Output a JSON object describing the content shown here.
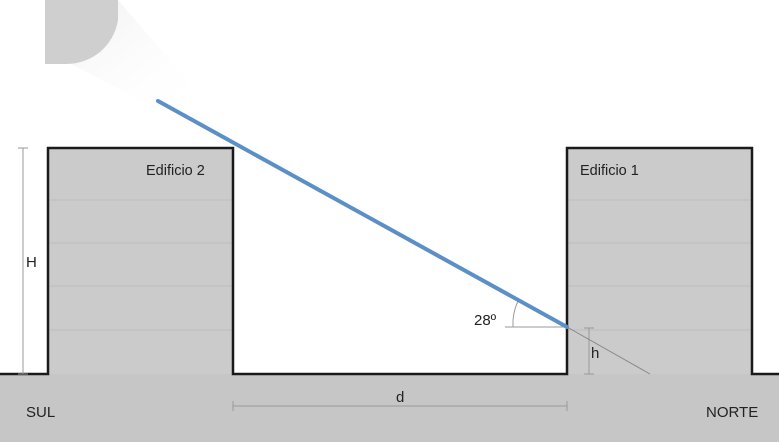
{
  "labels": {
    "building_left": "Edificio 2",
    "building_right": "Edificio 1",
    "height_big": "H",
    "height_small": "h",
    "distance": "d",
    "angle": "28º",
    "south": "SUL",
    "north": "NORTE"
  },
  "colors": {
    "background": "#ffffff",
    "ground": "#c6c6c6",
    "building_fill": "#cbcbcb",
    "outline": "#1a1a1a",
    "sun": "#cfcfcf",
    "sun_ray": "#5b8fc7",
    "floor_lines": "#bdbdbd",
    "dimension_lines": "#999999"
  }
}
